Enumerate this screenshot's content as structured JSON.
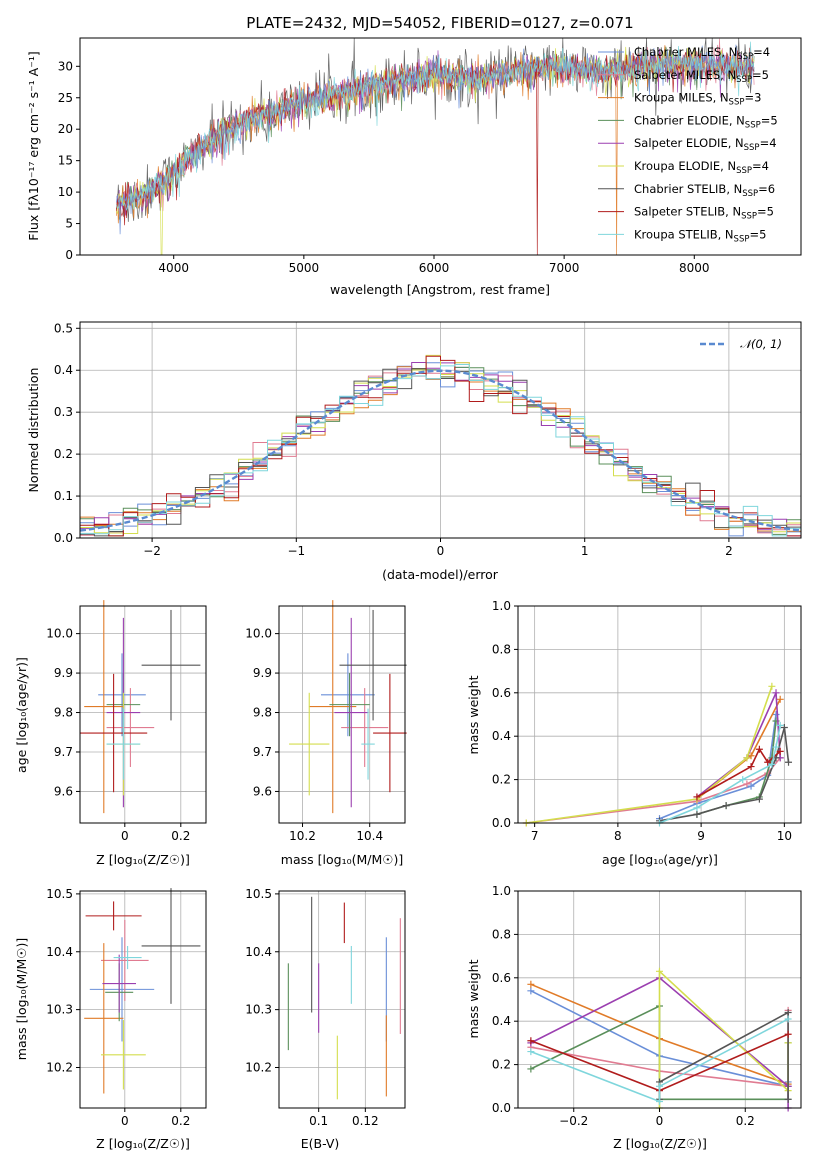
{
  "palette": [
    "#6a8fd8",
    "#e07b91",
    "#e07b28",
    "#5a8f5a",
    "#9b3fb0",
    "#d4de4e",
    "#555555",
    "#b01c1c",
    "#7fd6dc"
  ],
  "spectrum_panel": {
    "title": "PLATE=2432, MJD=54052, FIBERID=0127, z=0.071",
    "chart_data": {
      "type": "line",
      "xlabel": "wavelength [Angstrom, rest frame]",
      "ylabel": "Flux [fλ10⁻¹⁷ erg cm⁻² s⁻¹ A⁻¹]",
      "xlim": [
        3280,
        8820
      ],
      "ylim": [
        0,
        34.5
      ],
      "xticks": [
        4000,
        5000,
        6000,
        7000,
        8000
      ],
      "yticks": [
        0,
        5,
        10,
        15,
        20,
        25,
        30
      ],
      "continuum_x": [
        3560,
        3800,
        4000,
        4200,
        4500,
        5000,
        5500,
        6000,
        6300,
        6700,
        7000,
        7300,
        7600,
        8000,
        8300,
        8460
      ],
      "continuum_y": [
        8,
        10,
        13,
        17,
        21,
        24.5,
        27,
        29,
        28,
        29.5,
        30,
        29,
        30,
        30.5,
        30,
        30
      ]
    },
    "legend": [
      {
        "label": "Chabrier MILES, N",
        "sub": "SSP",
        "tail": "=4"
      },
      {
        "label": "Salpeter MILES, N",
        "sub": "SSP",
        "tail": "=5"
      },
      {
        "label": "Kroupa MILES, N",
        "sub": "SSP",
        "tail": "=3"
      },
      {
        "label": "Chabrier ELODIE, N",
        "sub": "SSP",
        "tail": "=5"
      },
      {
        "label": "Salpeter ELODIE, N",
        "sub": "SSP",
        "tail": "=4"
      },
      {
        "label": "Kroupa ELODIE, N",
        "sub": "SSP",
        "tail": "=4"
      },
      {
        "label": "Chabrier STELIB, N",
        "sub": "SSP",
        "tail": "=6"
      },
      {
        "label": "Salpeter STELIB, N",
        "sub": "SSP",
        "tail": "=5"
      },
      {
        "label": "Kroupa STELIB, N",
        "sub": "SSP",
        "tail": "=5"
      }
    ]
  },
  "residual_panel": {
    "chart_data": {
      "type": "histogram",
      "xlabel": "(data-model)/error",
      "ylabel": "Normed distribution",
      "xlim": [
        -2.5,
        2.5
      ],
      "ylim": [
        0,
        0.515
      ],
      "xticks": [
        -2,
        -1,
        0,
        1,
        2
      ],
      "yticks": [
        0.0,
        0.1,
        0.2,
        0.3,
        0.4,
        0.5
      ],
      "bin_width": 0.1,
      "gaussian": {
        "label": "𝒩(0, 1)",
        "mean": 0,
        "sigma": 1
      }
    }
  },
  "age_Z_panel": {
    "chart_data": {
      "type": "errorbar",
      "xlabel": "Z [log₁₀(Z/Z☉)]",
      "ylabel": "age  [log₁₀(age/yr)]",
      "xlim": [
        -0.16,
        0.29
      ],
      "ylim": [
        9.52,
        10.07
      ],
      "xticks": [
        0.0,
        0.2
      ],
      "yticks": [
        9.6,
        9.7,
        9.8,
        9.9,
        10.0
      ],
      "points": [
        {
          "x": -0.01,
          "xerr": 0.085,
          "y": 9.845,
          "yerr": 0.105
        },
        {
          "x": 0.02,
          "xerr": 0.085,
          "y": 9.762,
          "yerr": 0.1
        },
        {
          "x": -0.075,
          "xerr": 0.07,
          "y": 9.815,
          "yerr": 0.27
        },
        {
          "x": -0.005,
          "xerr": 0.06,
          "y": 9.82,
          "yerr": 0.08
        },
        {
          "x": -0.005,
          "xerr": 0.06,
          "y": 9.8,
          "yerr": 0.24
        },
        {
          "x": -0.005,
          "xerr": 0.06,
          "y": 9.72,
          "yerr": 0.13
        },
        {
          "x": 0.165,
          "xerr": 0.105,
          "y": 9.92,
          "yerr": 0.14
        },
        {
          "x": -0.04,
          "xerr": 0.12,
          "y": 9.748,
          "yerr": 0.15
        },
        {
          "x": -0.005,
          "xerr": 0.06,
          "y": 9.72,
          "yerr": 0.09
        }
      ]
    }
  },
  "age_mass_panel": {
    "chart_data": {
      "type": "errorbar",
      "xlabel": "mass [log₁₀(M/M☉)]",
      "ylabel": "",
      "xlim": [
        10.13,
        10.505
      ],
      "ylim": [
        9.52,
        10.07
      ],
      "xticks": [
        10.2,
        10.4
      ],
      "yticks": [
        9.6,
        9.7,
        9.8,
        9.9,
        10.0
      ],
      "points": [
        {
          "x": 10.335,
          "xerr": 0.08,
          "y": 9.845,
          "yerr": 0.105
        },
        {
          "x": 10.385,
          "xerr": 0.07,
          "y": 9.762,
          "yerr": 0.1
        },
        {
          "x": 10.29,
          "xerr": 0.07,
          "y": 9.815,
          "yerr": 0.27
        },
        {
          "x": 10.34,
          "xerr": 0.06,
          "y": 9.82,
          "yerr": 0.08
        },
        {
          "x": 10.345,
          "xerr": 0.05,
          "y": 9.8,
          "yerr": 0.24
        },
        {
          "x": 10.22,
          "xerr": 0.06,
          "y": 9.72,
          "yerr": 0.13
        },
        {
          "x": 10.41,
          "xerr": 0.1,
          "y": 9.92,
          "yerr": 0.14
        },
        {
          "x": 10.46,
          "xerr": 0.05,
          "y": 9.748,
          "yerr": 0.15
        },
        {
          "x": 10.395,
          "xerr": 0.02,
          "y": 9.72,
          "yerr": 0.09
        }
      ]
    }
  },
  "mass_Z_panel": {
    "chart_data": {
      "type": "errorbar",
      "xlabel": "Z [log₁₀(Z/Z☉)]",
      "ylabel": "mass [log₁₀(M/M☉)]",
      "xlim": [
        -0.16,
        0.29
      ],
      "ylim": [
        10.13,
        10.505
      ],
      "xticks": [
        0.0,
        0.2
      ],
      "yticks": [
        10.2,
        10.3,
        10.4,
        10.5
      ],
      "points": [
        {
          "x": -0.01,
          "xerr": 0.115,
          "y": 10.335,
          "yerr": 0.09
        },
        {
          "x": 0.0,
          "xerr": 0.085,
          "y": 10.385,
          "yerr": 0.07
        },
        {
          "x": -0.075,
          "xerr": 0.07,
          "y": 10.285,
          "yerr": 0.13
        },
        {
          "x": -0.02,
          "xerr": 0.05,
          "y": 10.33,
          "yerr": 0.05
        },
        {
          "x": -0.02,
          "xerr": 0.06,
          "y": 10.345,
          "yerr": 0.05
        },
        {
          "x": -0.005,
          "xerr": 0.08,
          "y": 10.222,
          "yerr": 0.06
        },
        {
          "x": 0.165,
          "xerr": 0.105,
          "y": 10.41,
          "yerr": 0.1
        },
        {
          "x": -0.04,
          "xerr": 0.1,
          "y": 10.462,
          "yerr": 0.025
        },
        {
          "x": 0.01,
          "xerr": 0.05,
          "y": 10.39,
          "yerr": 0.02
        }
      ]
    }
  },
  "mass_EBV_panel": {
    "chart_data": {
      "type": "errorbar",
      "xlabel": "E(B-V)",
      "ylabel": "",
      "xlim": [
        0.083,
        0.137
      ],
      "ylim": [
        10.13,
        10.505
      ],
      "xticks": [
        0.1,
        0.12
      ],
      "yticks": [
        10.2,
        10.3,
        10.4,
        10.5
      ],
      "points": [
        {
          "x": 0.129,
          "y": 10.335,
          "yerr": 0.09
        },
        {
          "x": 0.135,
          "y": 10.358,
          "yerr": 0.1
        },
        {
          "x": 0.129,
          "y": 10.22,
          "yerr": 0.07
        },
        {
          "x": 0.087,
          "y": 10.305,
          "yerr": 0.075
        },
        {
          "x": 0.1,
          "y": 10.32,
          "yerr": 0.06
        },
        {
          "x": 0.108,
          "y": 10.2,
          "yerr": 0.055
        },
        {
          "x": 0.097,
          "y": 10.395,
          "yerr": 0.1
        },
        {
          "x": 0.111,
          "y": 10.45,
          "yerr": 0.035
        },
        {
          "x": 0.114,
          "y": 10.36,
          "yerr": 0.05
        }
      ]
    }
  },
  "weight_age_panel": {
    "chart_data": {
      "type": "line",
      "xlabel": "age  [log₁₀(age/yr)]",
      "ylabel": "mass weight",
      "xlim": [
        6.8,
        10.2
      ],
      "ylim": [
        0,
        1.0
      ],
      "xticks": [
        7,
        8,
        9,
        10
      ],
      "yticks": [
        0.0,
        0.2,
        0.4,
        0.6,
        0.8,
        1.0
      ],
      "series": [
        {
          "x": [
            8.5,
            8.95,
            9.6,
            9.8,
            9.9
          ],
          "y": [
            0.02,
            0.09,
            0.17,
            0.22,
            0.5
          ]
        },
        {
          "x": [
            6.9,
            8.95,
            9.55,
            9.8,
            9.95
          ],
          "y": [
            0.0,
            0.1,
            0.18,
            0.23,
            0.3
          ]
        },
        {
          "x": [
            8.95,
            9.6,
            9.95
          ],
          "y": [
            0.11,
            0.31,
            0.57
          ]
        },
        {
          "x": [
            8.95,
            9.3,
            9.7,
            9.85,
            9.9
          ],
          "y": [
            0.04,
            0.08,
            0.12,
            0.3,
            0.47
          ]
        },
        {
          "x": [
            8.95,
            9.55,
            9.9,
            9.95
          ],
          "y": [
            0.12,
            0.3,
            0.6,
            0.3
          ]
        },
        {
          "x": [
            6.9,
            8.95,
            9.55,
            9.85
          ],
          "y": [
            0.0,
            0.11,
            0.3,
            0.63
          ]
        },
        {
          "x": [
            8.5,
            8.95,
            9.3,
            9.7,
            9.9,
            10.0,
            10.05
          ],
          "y": [
            0.01,
            0.04,
            0.08,
            0.11,
            0.3,
            0.44,
            0.28
          ]
        },
        {
          "x": [
            8.95,
            9.6,
            9.7,
            9.8,
            9.95
          ],
          "y": [
            0.12,
            0.26,
            0.34,
            0.28,
            0.33
          ]
        },
        {
          "x": [
            8.5,
            8.95,
            9.5,
            9.85,
            9.9,
            9.95
          ],
          "y": [
            0.0,
            0.07,
            0.2,
            0.27,
            0.35,
            0.45
          ]
        }
      ]
    }
  },
  "weight_Z_panel": {
    "chart_data": {
      "type": "line",
      "xlabel": "Z [log₁₀(Z/Z☉)]",
      "ylabel": "mass weight",
      "xlim": [
        -0.33,
        0.33
      ],
      "ylim": [
        0,
        1.0
      ],
      "xticks": [
        -0.2,
        0.0,
        0.2
      ],
      "yticks": [
        0.0,
        0.2,
        0.4,
        0.6,
        0.8,
        1.0
      ],
      "series": [
        {
          "x": [
            -0.3,
            0.0,
            0.3,
            0.3
          ],
          "y": [
            0.54,
            0.24,
            0.1,
            0.12
          ]
        },
        {
          "x": [
            -0.3,
            0.0,
            0.3,
            0.3
          ],
          "y": [
            0.28,
            0.17,
            0.1,
            0.45
          ]
        },
        {
          "x": [
            -0.3,
            0.0,
            0.3
          ],
          "y": [
            0.57,
            0.32,
            0.11
          ]
        },
        {
          "x": [
            -0.3,
            0.0,
            0.0,
            0.3,
            0.3
          ],
          "y": [
            0.18,
            0.47,
            0.04,
            0.04,
            0.3
          ]
        },
        {
          "x": [
            -0.3,
            0.0,
            0.3,
            0.3
          ],
          "y": [
            0.3,
            0.6,
            0.1,
            0.0
          ]
        },
        {
          "x": [
            0.0,
            0.0,
            0.3,
            0.3
          ],
          "y": [
            0.0,
            0.63,
            0.08,
            0.3
          ]
        },
        {
          "x": [
            0.0,
            0.0,
            0.3,
            0.3
          ],
          "y": [
            0.04,
            0.12,
            0.44,
            0.04
          ]
        },
        {
          "x": [
            -0.3,
            0.0,
            0.3
          ],
          "y": [
            0.31,
            0.08,
            0.34
          ]
        },
        {
          "x": [
            -0.3,
            0.0,
            0.0,
            0.3
          ],
          "y": [
            0.26,
            0.03,
            0.1,
            0.41
          ]
        }
      ]
    }
  }
}
